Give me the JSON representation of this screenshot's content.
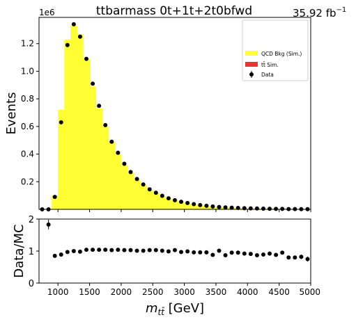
{
  "header": {
    "title": "ttbarmass  0t+1t+2t0bfwd",
    "lumi_value": "35.92 fb",
    "lumi_exp": "−1"
  },
  "chart_data": [
    {
      "type": "bar",
      "panel": "main",
      "ylabel": "Events",
      "y_multiplier": "1e6",
      "ylim": [
        0,
        1.39
      ],
      "xlim": [
        700,
        5000
      ],
      "bin_width": 100,
      "y_ticks": [
        0.2,
        0.4,
        0.6,
        0.8,
        1.0,
        1.2
      ],
      "y_tick_labels": [
        "0.2",
        "0.4",
        "0.6",
        "0.8",
        "1.0",
        "1.2"
      ],
      "legend": {
        "placement": "top-right",
        "entries": [
          {
            "label": "QCD Bkg (Sim.)",
            "color": "#ffff33"
          },
          {
            "label": "tt̄ Sim.",
            "color": "#ee3333"
          },
          {
            "label": "Data",
            "color": "#000000"
          }
        ]
      },
      "series": [
        {
          "name": "QCD Bkg (Sim.)",
          "color": "#ffff33",
          "bin_low_edges": [
            700,
            800,
            900,
            1000,
            1100,
            1200,
            1300,
            1400,
            1500,
            1600,
            1700,
            1800,
            1900,
            2000,
            2100,
            2200,
            2300,
            2400,
            2500,
            2600,
            2700,
            2800,
            2900,
            3000,
            3100,
            3200,
            3300,
            3400,
            3500,
            3600,
            3700,
            3800,
            3900,
            4000,
            4100,
            4200,
            4300,
            4400,
            4500,
            4600,
            4700,
            4800,
            4900
          ],
          "values": [
            0,
            0,
            0.1,
            0.72,
            1.23,
            1.33,
            1.27,
            1.09,
            0.89,
            0.73,
            0.6,
            0.49,
            0.4,
            0.32,
            0.265,
            0.215,
            0.175,
            0.14,
            0.115,
            0.095,
            0.078,
            0.065,
            0.052,
            0.043,
            0.035,
            0.029,
            0.024,
            0.019,
            0.016,
            0.013,
            0.011,
            0.009,
            0.008,
            0.006,
            0.005,
            0.004,
            0.0035,
            0.003,
            0.0025,
            0.002,
            0.0015,
            0.0012,
            0.001
          ]
        },
        {
          "name": "Data",
          "color": "#000000",
          "x": [
            750,
            850,
            950,
            1050,
            1150,
            1250,
            1350,
            1450,
            1550,
            1650,
            1750,
            1850,
            1950,
            2050,
            2150,
            2250,
            2350,
            2450,
            2550,
            2650,
            2750,
            2850,
            2950,
            3050,
            3150,
            3250,
            3350,
            3450,
            3550,
            3650,
            3750,
            3850,
            3950,
            4050,
            4150,
            4250,
            4350,
            4450,
            4550,
            4650,
            4750,
            4850,
            4950
          ],
          "values": [
            0,
            0,
            0.09,
            0.63,
            1.19,
            1.34,
            1.25,
            1.09,
            0.91,
            0.75,
            0.61,
            0.49,
            0.41,
            0.33,
            0.27,
            0.22,
            0.18,
            0.145,
            0.12,
            0.098,
            0.08,
            0.066,
            0.055,
            0.046,
            0.038,
            0.031,
            0.026,
            0.021,
            0.017,
            0.014,
            0.012,
            0.01,
            0.008,
            0.007,
            0.006,
            0.005,
            0.004,
            0.003,
            0.003,
            0.002,
            0.002,
            0.0015,
            0.001
          ]
        }
      ]
    },
    {
      "type": "scatter",
      "panel": "ratio",
      "ylabel": "Data/MC",
      "xlabel_base": "m",
      "xlabel_sub": "tt̄",
      "xlabel_unit": " [GeV]",
      "xlim": [
        700,
        5000
      ],
      "ylim": [
        0,
        2
      ],
      "y_ticks": [
        0,
        1,
        2
      ],
      "y_tick_labels": [
        "0",
        "1",
        "2"
      ],
      "x_ticks": [
        1000,
        1500,
        2000,
        2500,
        3000,
        3500,
        4000,
        4500,
        5000
      ],
      "x_tick_labels": [
        "1000",
        "1500",
        "2000",
        "2500",
        "3000",
        "3500",
        "4000",
        "4500",
        "5000"
      ],
      "series": [
        {
          "name": "Data",
          "x": [
            850,
            950,
            1050,
            1150,
            1250,
            1350,
            1450,
            1550,
            1650,
            1750,
            1850,
            1950,
            2050,
            2150,
            2250,
            2350,
            2450,
            2550,
            2650,
            2750,
            2850,
            2950,
            3050,
            3150,
            3250,
            3350,
            3450,
            3550,
            3650,
            3750,
            3850,
            3950,
            4050,
            4150,
            4250,
            4350,
            4450,
            4550,
            4650,
            4750,
            4850,
            4950
          ],
          "values": [
            1.83,
            0.85,
            0.89,
            0.97,
            1.0,
            0.98,
            1.04,
            1.04,
            1.04,
            1.04,
            1.03,
            1.04,
            1.03,
            1.03,
            1.01,
            1.01,
            1.03,
            1.03,
            1.01,
            0.99,
            1.03,
            0.97,
            0.99,
            0.96,
            0.96,
            0.96,
            0.88,
            1.01,
            0.87,
            0.95,
            0.95,
            0.92,
            0.91,
            0.87,
            0.89,
            0.92,
            0.88,
            0.95,
            0.8,
            0.8,
            0.82,
            0.75
          ],
          "err": [
            0.15,
            0.03,
            0.02,
            0.01,
            0.01,
            0.01,
            0.01,
            0.01,
            0.01,
            0.01,
            0.01,
            0.01,
            0.01,
            0.01,
            0.01,
            0.01,
            0.01,
            0.01,
            0.01,
            0.01,
            0.01,
            0.01,
            0.01,
            0.01,
            0.01,
            0.01,
            0.02,
            0.02,
            0.02,
            0.02,
            0.03,
            0.03,
            0.03,
            0.03,
            0.04,
            0.04,
            0.04,
            0.05,
            0.05,
            0.06,
            0.07,
            0.08
          ]
        }
      ]
    }
  ]
}
